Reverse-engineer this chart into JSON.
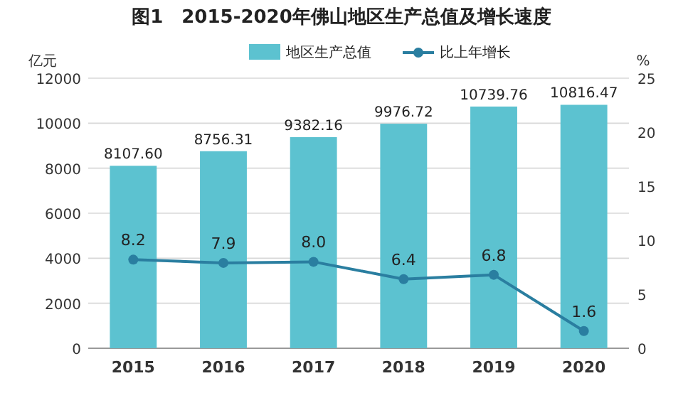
{
  "chart_data": {
    "type": "bar",
    "title": "图1　2015-2020年佛山地区生产总值及增长速度",
    "categories": [
      "2015",
      "2016",
      "2017",
      "2018",
      "2019",
      "2020"
    ],
    "ylabel": "亿元",
    "y2label": "%",
    "ylim": [
      0,
      12000
    ],
    "yticks": [
      0,
      2000,
      4000,
      6000,
      8000,
      10000,
      12000
    ],
    "y2lim": [
      0,
      25
    ],
    "y2ticks": [
      0,
      5,
      10,
      15,
      20,
      25
    ],
    "grid": "y",
    "legend": "top",
    "series": [
      {
        "name": "地区生产总值",
        "color": "#5cc2d0",
        "values": [
          8107.6,
          8756.31,
          9382.16,
          9976.72,
          10739.76,
          10816.47
        ],
        "value_labels": [
          "8107.60",
          "8756.31",
          "9382.16",
          "9976.72",
          "10739.76",
          "10816.47"
        ]
      },
      {
        "name": "比上年增长",
        "type": "line",
        "axis": "y2",
        "color": "#2a7ea0",
        "marker": "circle",
        "values": [
          8.2,
          7.9,
          8.0,
          6.4,
          6.8,
          1.6
        ],
        "value_labels": [
          "8.2",
          "7.9",
          "8.0",
          "6.4",
          "6.8",
          "1.6"
        ]
      }
    ]
  }
}
